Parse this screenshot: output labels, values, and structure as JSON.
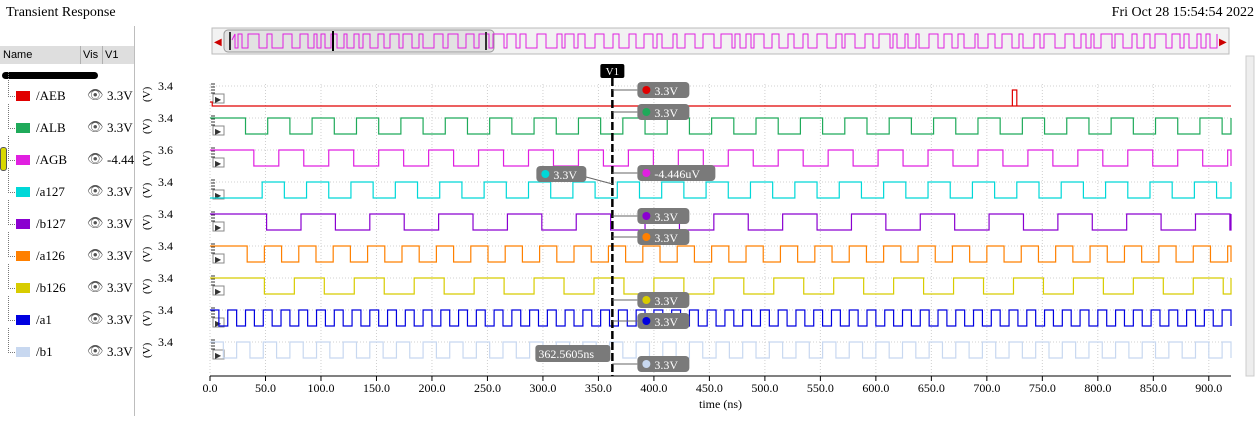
{
  "window": {
    "title": "Transient Response",
    "date": "Fri Oct 28 15:54:54 2022"
  },
  "columns": {
    "name": "Name",
    "vis": "Vis",
    "v1": "V1"
  },
  "signals": [
    {
      "name": "/AEB",
      "color": "#e00000",
      "value": "3.3V",
      "ytick": "3.4",
      "marker": "3.3V"
    },
    {
      "name": "/ALB",
      "color": "#1faa5a",
      "value": "3.3V",
      "ytick": "3.4",
      "marker": "3.3V"
    },
    {
      "name": "/AGB",
      "color": "#e020e0",
      "value": "-4.44",
      "ytick": "3.6",
      "marker": "-4.446uV"
    },
    {
      "name": "/a127",
      "color": "#00d8d8",
      "value": "3.3V",
      "ytick": "3.4",
      "marker": "3.3V"
    },
    {
      "name": "/b127",
      "color": "#8a00d0",
      "value": "3.3V",
      "ytick": "3.4",
      "marker": "3.3V"
    },
    {
      "name": "/a126",
      "color": "#ff8000",
      "value": "3.3V",
      "ytick": "3.4",
      "marker": "3.3V"
    },
    {
      "name": "/b126",
      "color": "#d8cc00",
      "value": "3.3V",
      "ytick": "3.4",
      "marker": "3.3V"
    },
    {
      "name": "/a1",
      "color": "#0000e0",
      "value": "3.3V",
      "ytick": "3.4",
      "marker": "3.3V"
    },
    {
      "name": "/b1",
      "color": "#c8d8f0",
      "value": "3.3V",
      "ytick": "3.4",
      "marker": "3.3V"
    }
  ],
  "yunit": "(V)",
  "cursor": {
    "label": "V1",
    "time": "362.5605ns",
    "a127_value": "3.3V"
  },
  "xaxis": {
    "label": "time (ns)",
    "ticks": [
      "0.0",
      "50.0",
      "100.0",
      "150.0",
      "200.0",
      "250.0",
      "300.0",
      "350.0",
      "400.0",
      "450.0",
      "500.0",
      "550.0",
      "600.0",
      "650.0",
      "700.0",
      "750.0",
      "800.0",
      "850.0",
      "900.0"
    ]
  }
}
